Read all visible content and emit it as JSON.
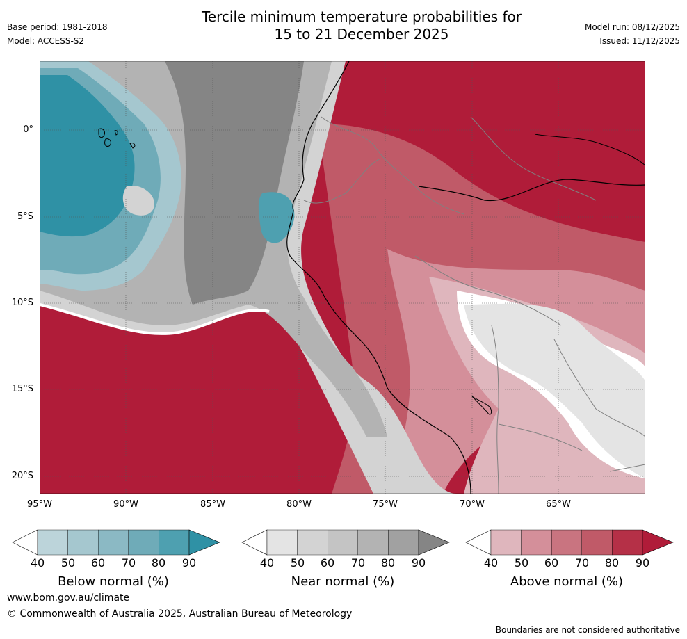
{
  "header": {
    "title_line1": "Tercile minimum temperature probabilities for",
    "title_line2": "15 to 21 December 2025",
    "base_period": "Base period: 1981-2018",
    "model": "Model: ACCESS-S2",
    "model_run": "Model run: 08/12/2025",
    "issued": "Issued: 11/12/2025"
  },
  "map": {
    "lat_labels": [
      "0°",
      "5°S",
      "10°S",
      "15°S",
      "20°S"
    ],
    "lon_labels": [
      "95°W",
      "90°W",
      "85°W",
      "80°W",
      "75°W",
      "70°W",
      "65°W"
    ]
  },
  "colorbars": [
    {
      "title": "Below normal (%)",
      "ticks": [
        "40",
        "50",
        "60",
        "70",
        "80",
        "90"
      ],
      "colors": [
        "#ffffff",
        "#bcd4da",
        "#a5c7cf",
        "#8bb9c4",
        "#6fabb8",
        "#4ea0b0",
        "#2f91a5"
      ]
    },
    {
      "title": "Near normal (%)",
      "ticks": [
        "40",
        "50",
        "60",
        "70",
        "80",
        "90"
      ],
      "colors": [
        "#ffffff",
        "#e4e4e4",
        "#d3d3d3",
        "#c4c4c4",
        "#b3b3b3",
        "#a1a1a1",
        "#858585"
      ]
    },
    {
      "title": "Above normal (%)",
      "ticks": [
        "40",
        "50",
        "60",
        "70",
        "80",
        "90"
      ],
      "colors": [
        "#ffffff",
        "#dfb6bd",
        "#d48f9a",
        "#c97480",
        "#c05a68",
        "#b53047",
        "#b01c39"
      ]
    }
  ],
  "footer": {
    "website": "www.bom.gov.au/climate",
    "copyright": "© Commonwealth of Australia 2025, Australian Bureau of Meteorology",
    "disclaimer": "Boundaries are not considered authoritative"
  }
}
